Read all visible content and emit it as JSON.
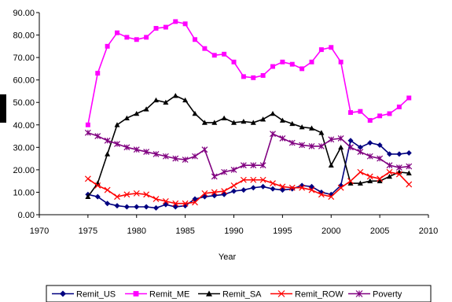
{
  "chart_data": {
    "type": "line",
    "title": "",
    "xlabel": "Year",
    "ylabel": "",
    "xlim": [
      1970,
      2010
    ],
    "ylim": [
      0,
      90
    ],
    "x_ticks": [
      "1970",
      "1975",
      "1980",
      "1985",
      "1990",
      "1995",
      "2000",
      "2005",
      "2010"
    ],
    "y_ticks": [
      "0.00",
      "10.00",
      "20.00",
      "30.00",
      "40.00",
      "50.00",
      "60.00",
      "70.00",
      "80.00",
      "90.00"
    ],
    "grid": false,
    "legend_position": "bottom",
    "x": [
      1975,
      1976,
      1977,
      1978,
      1979,
      1980,
      1981,
      1982,
      1983,
      1984,
      1985,
      1986,
      1987,
      1988,
      1989,
      1990,
      1991,
      1992,
      1993,
      1994,
      1995,
      1996,
      1997,
      1998,
      1999,
      2000,
      2001,
      2002,
      2003,
      2004,
      2005,
      2006,
      2007,
      2008
    ],
    "series": [
      {
        "name": "Remit_US",
        "color": "#000080",
        "marker": "diamond",
        "values": [
          9,
          8,
          5,
          4,
          3.5,
          3.5,
          3.5,
          3,
          4.5,
          3.5,
          4,
          7,
          8,
          8.5,
          9,
          10.5,
          11,
          12,
          12.5,
          11.5,
          11,
          11.5,
          13,
          12.5,
          10,
          9,
          13,
          33,
          30,
          32,
          31,
          27,
          27,
          27.5
        ]
      },
      {
        "name": "Remit_ME",
        "color": "#FF00FF",
        "marker": "square",
        "values": [
          40,
          63,
          75,
          81,
          79,
          78,
          79,
          83,
          83.5,
          86,
          85,
          78,
          74,
          71,
          71.5,
          68,
          61.5,
          61,
          62,
          66,
          68,
          67,
          65,
          68,
          73.5,
          74.5,
          68,
          45.5,
          46,
          42,
          44,
          45,
          48,
          52
        ]
      },
      {
        "name": "Remit_SA",
        "color": "#000000",
        "marker": "triangle",
        "values": [
          8,
          14,
          27,
          40,
          43,
          45,
          47,
          51,
          50,
          53,
          51,
          45,
          41,
          41,
          43,
          41,
          41.5,
          41,
          42.5,
          45,
          42,
          40.5,
          39,
          38.5,
          36.5,
          22,
          30,
          14,
          14,
          15,
          15,
          17,
          19,
          18.5
        ]
      },
      {
        "name": "Remit_ROW",
        "color": "#FF0000",
        "marker": "x",
        "values": [
          16,
          13,
          11,
          8,
          9,
          9.5,
          9,
          7,
          6,
          5,
          5,
          5.5,
          9.5,
          10,
          10.5,
          13,
          15.5,
          15.5,
          15.5,
          14,
          12.5,
          12,
          12,
          11,
          9,
          8,
          12,
          15,
          19,
          17,
          16,
          19,
          18,
          13.5
        ]
      },
      {
        "name": "Poverty",
        "color": "#800080",
        "marker": "asterisk",
        "values": [
          36.5,
          35,
          33,
          31.5,
          30,
          29,
          28,
          27,
          26,
          25,
          24.5,
          26,
          29,
          17,
          19,
          20,
          22,
          22,
          22,
          36,
          34,
          32,
          31,
          30.5,
          30.5,
          33.5,
          34,
          30,
          28,
          26,
          25,
          22,
          21,
          21.5
        ]
      }
    ]
  }
}
